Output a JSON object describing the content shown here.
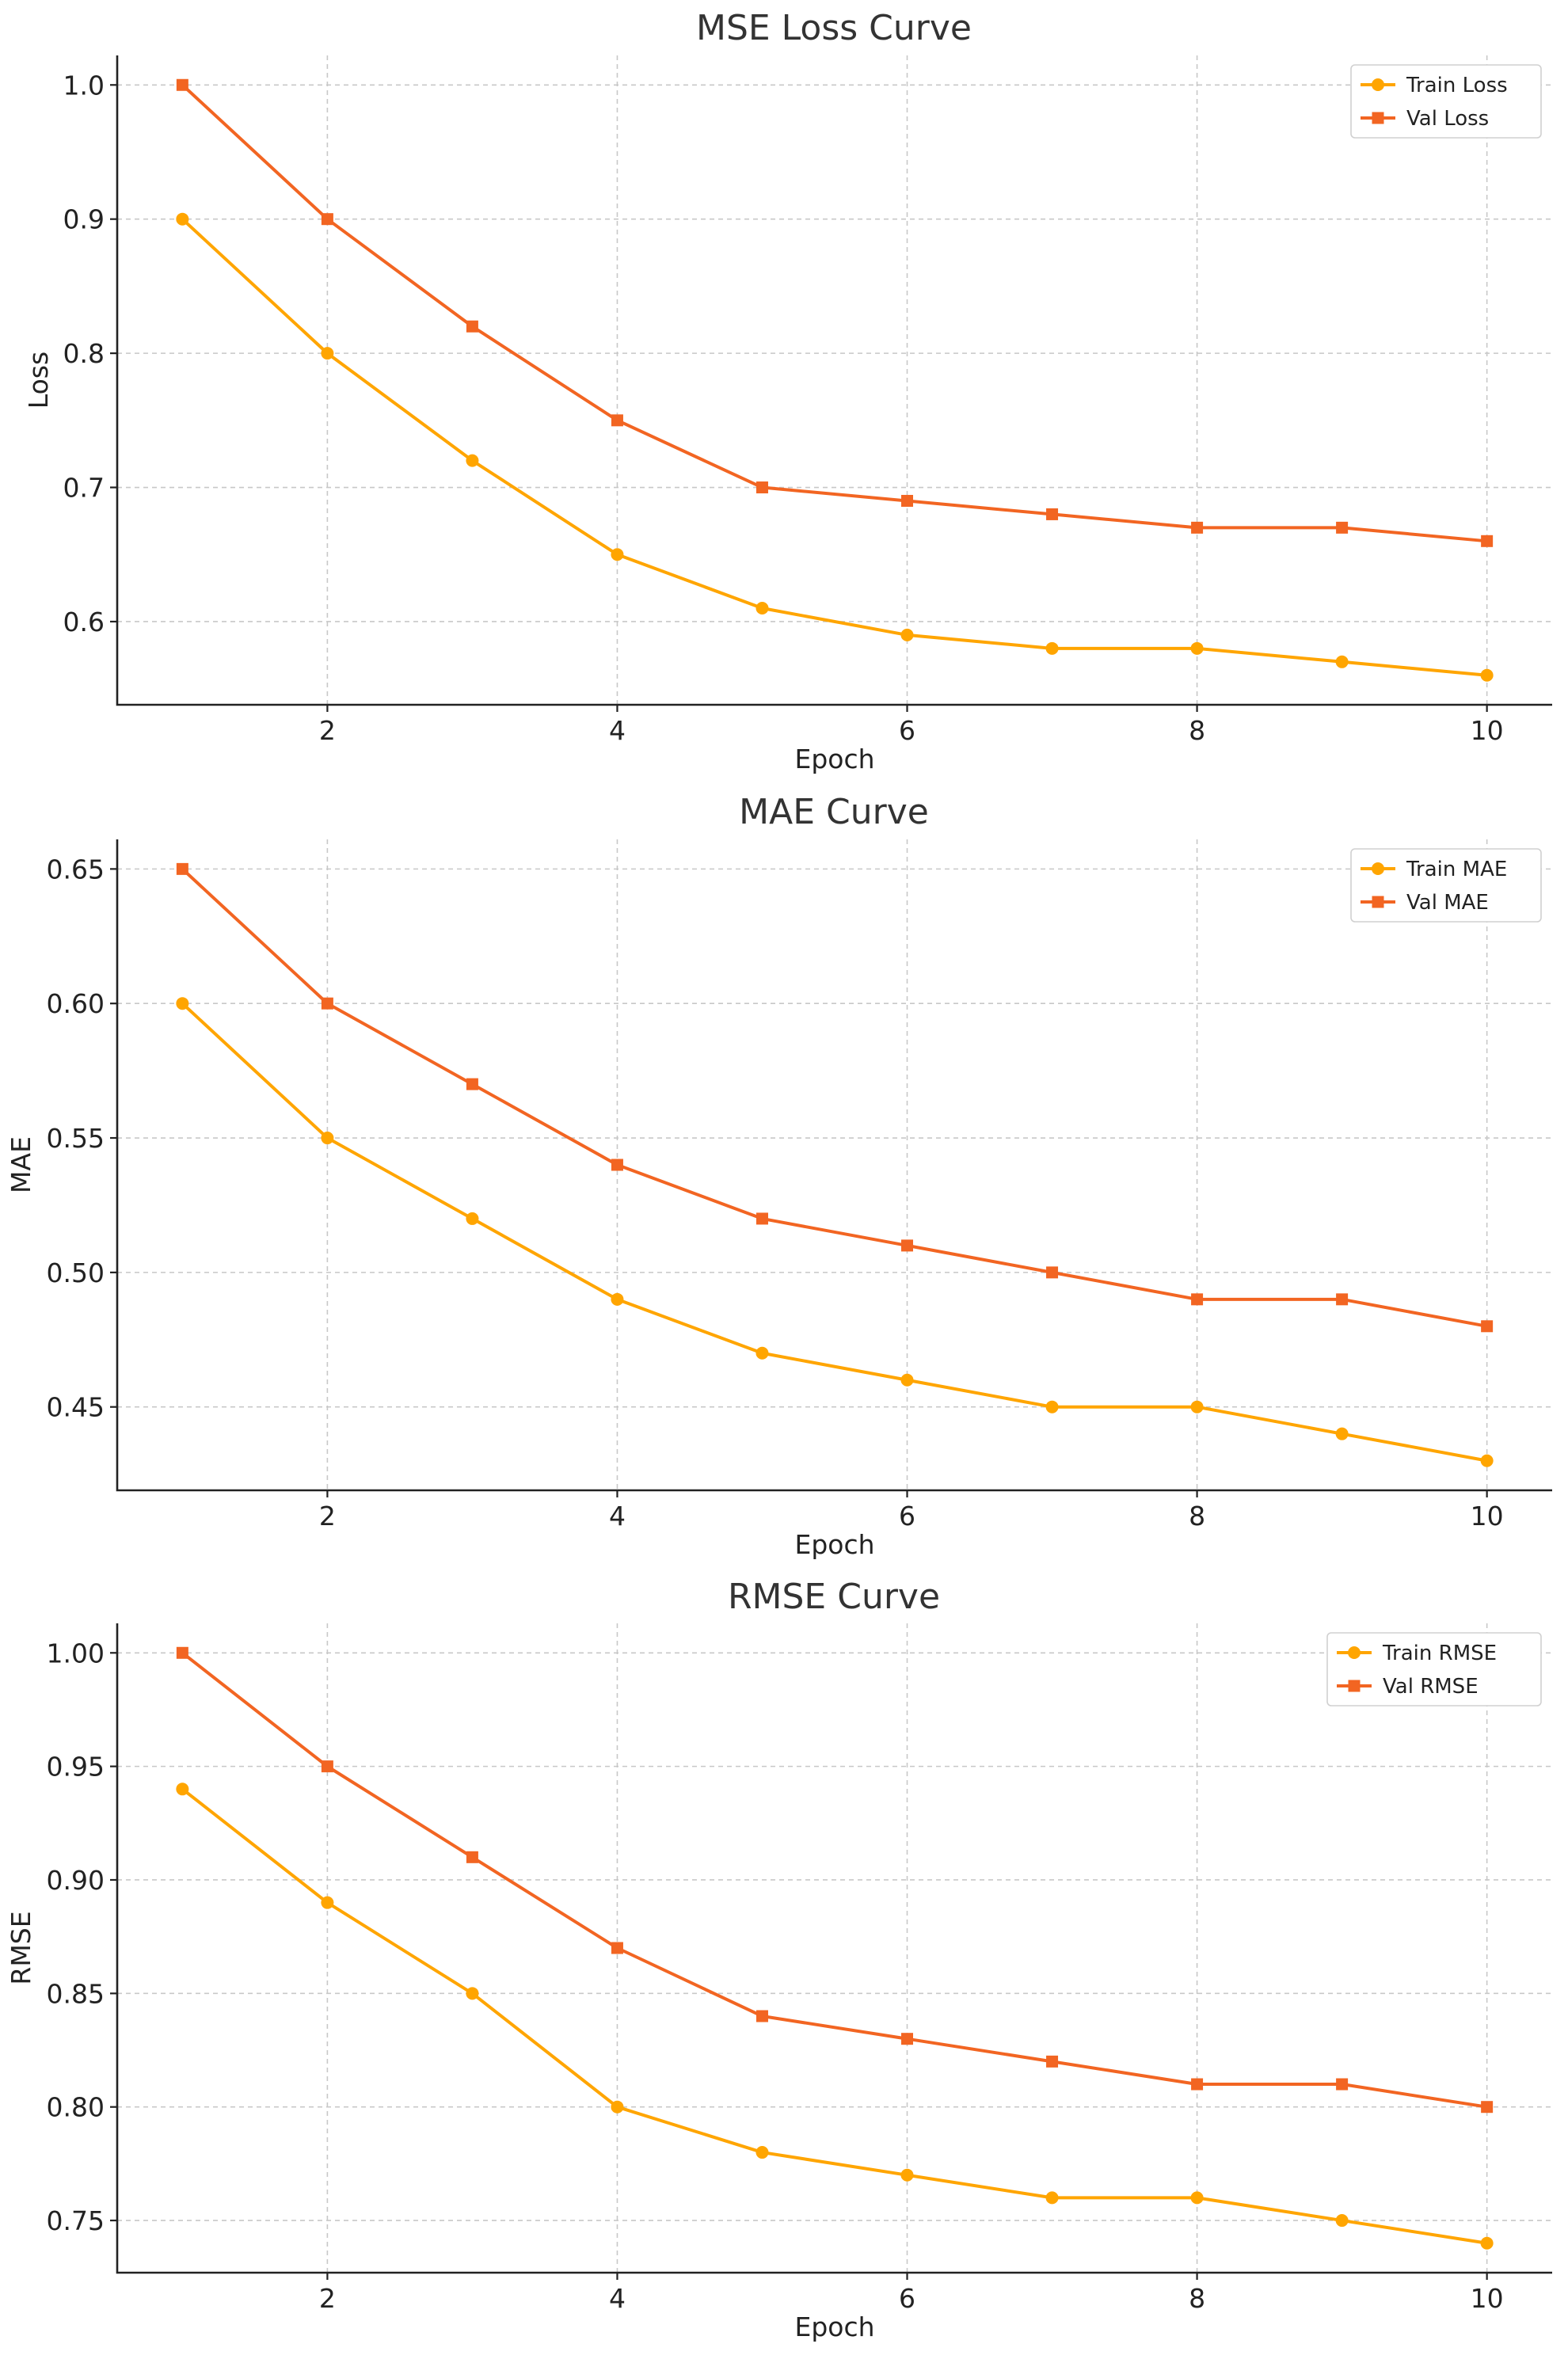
{
  "colors": {
    "train": "#FFA500",
    "val": "#F26522"
  },
  "chart_data": [
    {
      "type": "line",
      "title": "MSE Loss Curve",
      "xlabel": "Epoch",
      "ylabel": "Loss",
      "x": [
        1,
        2,
        3,
        4,
        5,
        6,
        7,
        8,
        9,
        10
      ],
      "xlim": [
        0.55,
        10.45
      ],
      "ylim": [
        0.538,
        1.022
      ],
      "xticks": [
        2,
        4,
        6,
        8,
        10
      ],
      "yticks": [
        0.6,
        0.7,
        0.8,
        0.9,
        1.0
      ],
      "ytick_labels": [
        "0.6",
        "0.7",
        "0.8",
        "0.9",
        "1.0"
      ],
      "grid": true,
      "legend": "top-right",
      "series": [
        {
          "name": "Train Loss",
          "marker": "circle",
          "values": [
            0.9,
            0.8,
            0.72,
            0.65,
            0.61,
            0.59,
            0.58,
            0.58,
            0.57,
            0.56
          ]
        },
        {
          "name": "Val Loss",
          "marker": "square",
          "values": [
            1.0,
            0.9,
            0.82,
            0.75,
            0.7,
            0.69,
            0.68,
            0.67,
            0.67,
            0.66
          ]
        }
      ]
    },
    {
      "type": "line",
      "title": "MAE Curve",
      "xlabel": "Epoch",
      "ylabel": "MAE",
      "x": [
        1,
        2,
        3,
        4,
        5,
        6,
        7,
        8,
        9,
        10
      ],
      "xlim": [
        0.55,
        10.45
      ],
      "ylim": [
        0.419,
        0.661
      ],
      "xticks": [
        2,
        4,
        6,
        8,
        10
      ],
      "yticks": [
        0.45,
        0.5,
        0.55,
        0.6,
        0.65
      ],
      "ytick_labels": [
        "0.45",
        "0.50",
        "0.55",
        "0.60",
        "0.65"
      ],
      "grid": true,
      "legend": "top-right",
      "series": [
        {
          "name": "Train MAE",
          "marker": "circle",
          "values": [
            0.6,
            0.55,
            0.52,
            0.49,
            0.47,
            0.46,
            0.45,
            0.45,
            0.44,
            0.43
          ]
        },
        {
          "name": "Val MAE",
          "marker": "square",
          "values": [
            0.65,
            0.6,
            0.57,
            0.54,
            0.52,
            0.51,
            0.5,
            0.49,
            0.49,
            0.48
          ]
        }
      ]
    },
    {
      "type": "line",
      "title": "RMSE Curve",
      "xlabel": "Epoch",
      "ylabel": "RMSE",
      "x": [
        1,
        2,
        3,
        4,
        5,
        6,
        7,
        8,
        9,
        10
      ],
      "xlim": [
        0.55,
        10.45
      ],
      "ylim": [
        0.727,
        1.013
      ],
      "xticks": [
        2,
        4,
        6,
        8,
        10
      ],
      "yticks": [
        0.75,
        0.8,
        0.85,
        0.9,
        0.95,
        1.0
      ],
      "ytick_labels": [
        "0.75",
        "0.80",
        "0.85",
        "0.90",
        "0.95",
        "1.00"
      ],
      "grid": true,
      "legend": "top-right",
      "series": [
        {
          "name": "Train RMSE",
          "marker": "circle",
          "values": [
            0.94,
            0.89,
            0.85,
            0.8,
            0.78,
            0.77,
            0.76,
            0.76,
            0.75,
            0.74
          ]
        },
        {
          "name": "Val RMSE",
          "marker": "square",
          "values": [
            1.0,
            0.95,
            0.91,
            0.87,
            0.84,
            0.83,
            0.82,
            0.81,
            0.81,
            0.8
          ]
        }
      ]
    }
  ]
}
